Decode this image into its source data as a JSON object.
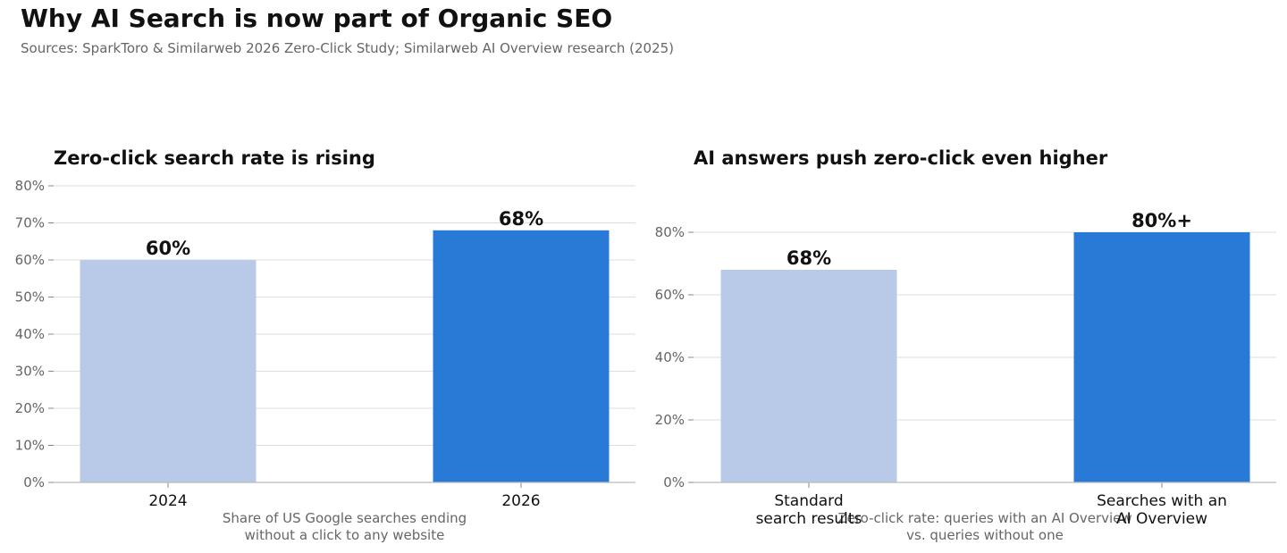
{
  "header": {
    "title": "Why AI Search is now part of Organic SEO",
    "subtitle": "Sources: SparkToro & Similarweb 2026 Zero-Click Study; Similarweb AI Overview research (2025)"
  },
  "chart_data": [
    {
      "type": "bar",
      "title": "Zero-click search rate is rising",
      "categories": [
        "2024",
        "2026"
      ],
      "values": [
        60,
        68
      ],
      "value_labels": [
        "60%",
        "68%"
      ],
      "xlabel": "Share of US Google searches ending\nwithout a click to any website",
      "ylabel": "",
      "ylim": [
        0,
        80
      ],
      "yticks": [
        0,
        10,
        20,
        30,
        40,
        50,
        60,
        70,
        80
      ],
      "ytick_labels": [
        "0%",
        "10%",
        "20%",
        "30%",
        "40%",
        "50%",
        "60%",
        "70%",
        "80%"
      ],
      "grid": true,
      "colors": [
        "#b8cae8",
        "#2979d6"
      ]
    },
    {
      "type": "bar",
      "title": "AI answers push zero-click even higher",
      "categories": [
        "Standard\nsearch results",
        "Searches with an\nAI Overview"
      ],
      "values": [
        68,
        80
      ],
      "value_labels": [
        "68%",
        "80%+"
      ],
      "xlabel": "Zero-click rate: queries with an AI Overview\nvs. queries without one",
      "ylabel": "",
      "ylim": [
        0,
        80
      ],
      "yticks": [
        0,
        20,
        40,
        60,
        80
      ],
      "ytick_labels": [
        "0%",
        "20%",
        "40%",
        "60%",
        "80%"
      ],
      "grid": true,
      "colors": [
        "#b8cae8",
        "#2979d6"
      ]
    }
  ]
}
